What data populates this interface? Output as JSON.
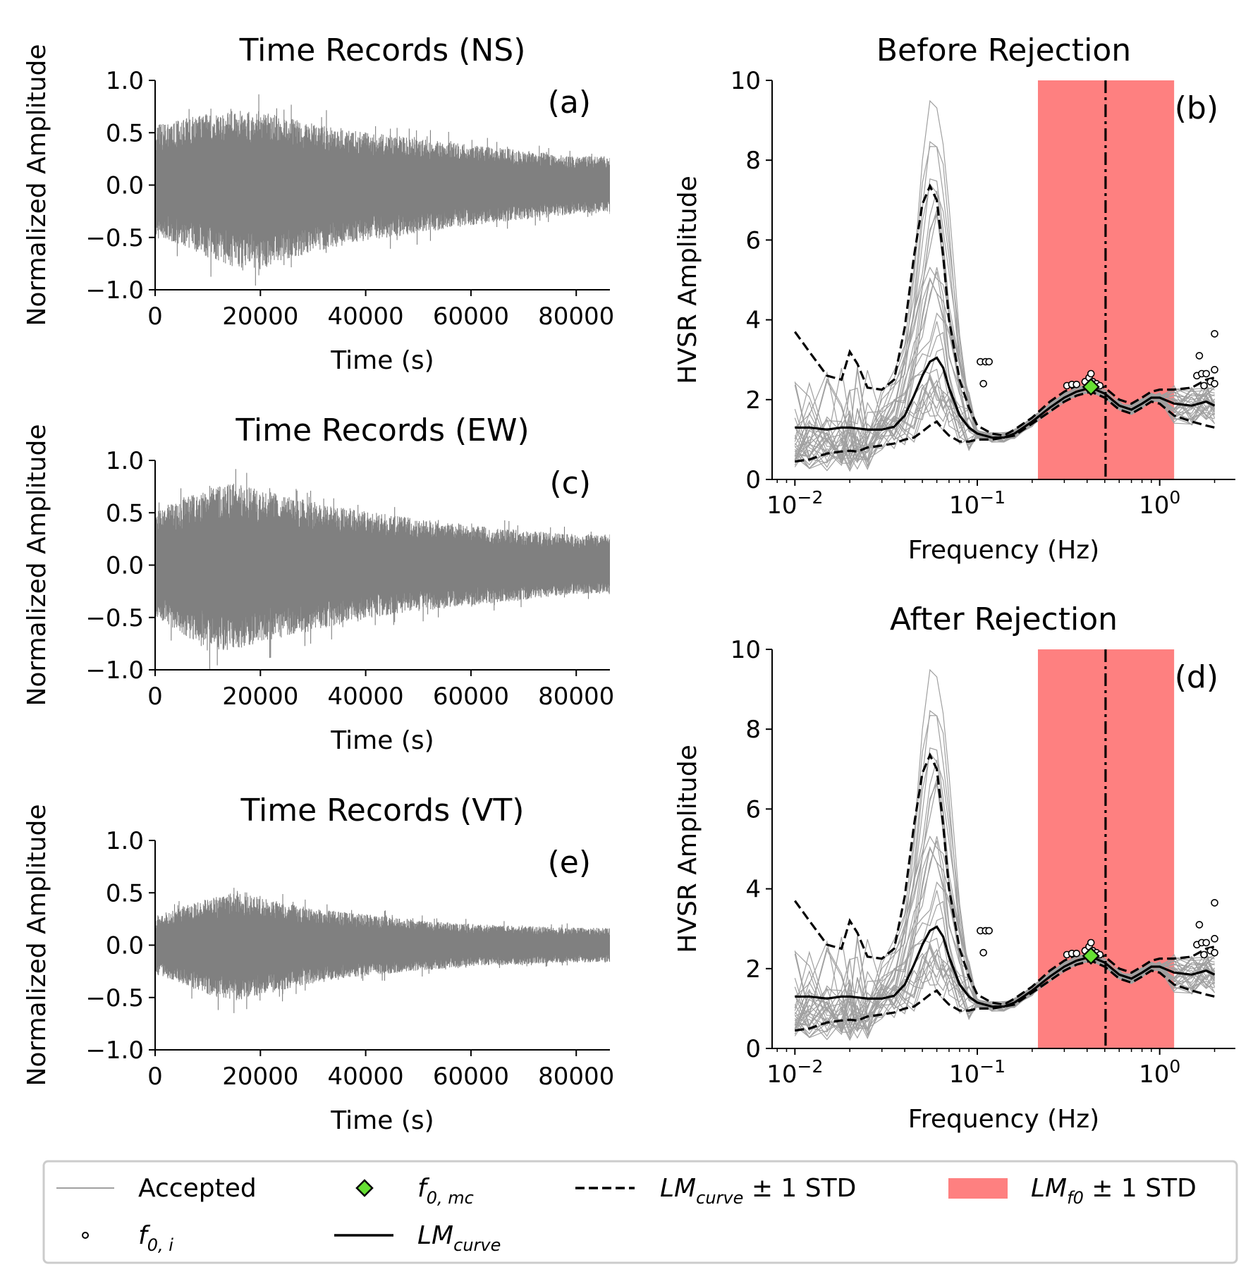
{
  "chart_data": [
    {
      "id": "a",
      "panel_tag": "(a)",
      "type": "line",
      "title": "Time Records (NS)",
      "xlabel": "Time (s)",
      "ylabel": "Normalized Amplitude",
      "xlim": [
        0,
        86400
      ],
      "ylim": [
        -1.0,
        1.0
      ],
      "xticks": [
        0,
        20000,
        40000,
        60000,
        80000
      ],
      "yticks": [
        1.0,
        0.5,
        0.0,
        -0.5,
        -1.0
      ],
      "ytick_labels": [
        "1.0",
        "0.5",
        "0.0",
        "−0.5",
        "−1.0"
      ],
      "color": "#808080",
      "envelope": {
        "t": [
          0,
          5000,
          10000,
          15000,
          20000,
          25000,
          30000,
          40000,
          50000,
          60000,
          70000,
          80000,
          86400
        ],
        "upper": [
          0.62,
          0.68,
          0.75,
          0.8,
          0.76,
          0.7,
          0.65,
          0.55,
          0.48,
          0.42,
          0.36,
          0.3,
          0.3
        ],
        "lower": [
          -0.55,
          -0.62,
          -0.75,
          -0.85,
          -0.88,
          -0.78,
          -0.7,
          -0.58,
          -0.5,
          -0.42,
          -0.36,
          -0.3,
          -0.3
        ]
      }
    },
    {
      "id": "c",
      "panel_tag": "(c)",
      "type": "line",
      "title": "Time Records (EW)",
      "xlabel": "Time (s)",
      "ylabel": "Normalized Amplitude",
      "xlim": [
        0,
        86400
      ],
      "ylim": [
        -1.0,
        1.0
      ],
      "xticks": [
        0,
        20000,
        40000,
        60000,
        80000
      ],
      "yticks": [
        1.0,
        0.5,
        0.0,
        -0.5,
        -1.0
      ],
      "ytick_labels": [
        "1.0",
        "0.5",
        "0.0",
        "−0.5",
        "−1.0"
      ],
      "color": "#808080",
      "envelope": {
        "t": [
          0,
          5000,
          10000,
          15000,
          20000,
          25000,
          30000,
          40000,
          50000,
          60000,
          70000,
          80000,
          86400
        ],
        "upper": [
          0.55,
          0.68,
          0.8,
          0.85,
          0.78,
          0.72,
          0.66,
          0.56,
          0.48,
          0.42,
          0.36,
          0.32,
          0.32
        ],
        "lower": [
          -0.55,
          -0.7,
          -0.9,
          -0.88,
          -0.8,
          -0.74,
          -0.68,
          -0.56,
          -0.48,
          -0.42,
          -0.36,
          -0.3,
          -0.3
        ]
      }
    },
    {
      "id": "e",
      "panel_tag": "(e)",
      "type": "line",
      "title": "Time Records (VT)",
      "xlabel": "Time (s)",
      "ylabel": "Normalized Amplitude",
      "xlim": [
        0,
        86400
      ],
      "ylim": [
        -1.0,
        1.0
      ],
      "xticks": [
        0,
        20000,
        40000,
        60000,
        80000
      ],
      "yticks": [
        1.0,
        0.5,
        0.0,
        -0.5,
        -1.0
      ],
      "ytick_labels": [
        "1.0",
        "0.5",
        "0.0",
        "−0.5",
        "−1.0"
      ],
      "color": "#808080",
      "envelope": {
        "t": [
          0,
          5000,
          10000,
          15000,
          20000,
          25000,
          30000,
          40000,
          50000,
          60000,
          70000,
          80000,
          86400
        ],
        "upper": [
          0.3,
          0.4,
          0.48,
          0.55,
          0.5,
          0.44,
          0.38,
          0.32,
          0.26,
          0.22,
          0.2,
          0.18,
          0.18
        ],
        "lower": [
          -0.3,
          -0.4,
          -0.52,
          -0.58,
          -0.52,
          -0.46,
          -0.4,
          -0.32,
          -0.27,
          -0.22,
          -0.2,
          -0.18,
          -0.18
        ]
      }
    },
    {
      "id": "b",
      "panel_tag": "(b)",
      "type": "line",
      "title": "Before Rejection",
      "xlabel": "Frequency (Hz)",
      "ylabel": "HVSR Amplitude",
      "xscale": "log",
      "xlim": [
        0.0075,
        2.6
      ],
      "ylim": [
        0,
        10
      ],
      "xticks": [
        0.01,
        0.1,
        1.0
      ],
      "yticks": [
        0,
        2,
        4,
        6,
        8,
        10
      ],
      "lm_f0_band": [
        0.215,
        1.2
      ],
      "lm_f0": 0.505,
      "f0_mc": {
        "f": 0.42,
        "amp": 2.32
      },
      "freq": [
        0.01,
        0.012,
        0.015,
        0.018,
        0.02,
        0.022,
        0.025,
        0.03,
        0.035,
        0.04,
        0.045,
        0.05,
        0.055,
        0.06,
        0.065,
        0.07,
        0.08,
        0.09,
        0.1,
        0.12,
        0.14,
        0.16,
        0.2,
        0.25,
        0.3,
        0.35,
        0.42,
        0.5,
        0.6,
        0.7,
        0.8,
        0.9,
        1.0,
        1.2,
        1.5,
        1.8,
        2.0
      ],
      "lm_curve": [
        1.3,
        1.3,
        1.25,
        1.3,
        1.3,
        1.28,
        1.25,
        1.25,
        1.32,
        1.6,
        2.1,
        2.6,
        2.95,
        3.05,
        2.8,
        2.3,
        1.6,
        1.3,
        1.15,
        1.05,
        1.05,
        1.15,
        1.45,
        1.8,
        2.05,
        2.2,
        2.3,
        2.15,
        1.85,
        1.75,
        1.9,
        2.05,
        2.05,
        1.9,
        1.85,
        1.95,
        1.85
      ],
      "lm_curve_plus_std": [
        3.7,
        3.2,
        2.6,
        2.5,
        3.2,
        2.9,
        2.3,
        2.25,
        2.5,
        3.8,
        5.6,
        6.9,
        7.35,
        7.0,
        5.6,
        4.0,
        2.5,
        1.8,
        1.35,
        1.15,
        1.1,
        1.25,
        1.55,
        1.95,
        2.2,
        2.35,
        2.45,
        2.3,
        2.0,
        1.9,
        2.05,
        2.2,
        2.25,
        2.25,
        2.3,
        2.5,
        2.55
      ],
      "lm_curve_minus_std": [
        0.45,
        0.5,
        0.65,
        0.7,
        0.72,
        0.7,
        0.8,
        0.85,
        0.9,
        1.0,
        1.05,
        1.2,
        1.35,
        1.45,
        1.25,
        1.1,
        0.95,
        0.95,
        1.0,
        1.0,
        1.05,
        1.1,
        1.4,
        1.7,
        1.95,
        2.1,
        2.2,
        2.05,
        1.75,
        1.65,
        1.8,
        1.95,
        1.9,
        1.6,
        1.45,
        1.35,
        1.3
      ],
      "f0_i": [
        [
          0.104,
          2.95
        ],
        [
          0.108,
          2.4
        ],
        [
          0.111,
          2.95
        ],
        [
          0.116,
          2.95
        ],
        [
          0.31,
          2.35
        ],
        [
          0.33,
          2.38
        ],
        [
          0.35,
          2.38
        ],
        [
          0.39,
          2.45
        ],
        [
          0.41,
          2.55
        ],
        [
          0.42,
          2.65
        ],
        [
          0.43,
          2.45
        ],
        [
          0.45,
          2.4
        ],
        [
          0.47,
          2.35
        ],
        [
          1.6,
          2.6
        ],
        [
          1.65,
          3.1
        ],
        [
          1.7,
          2.65
        ],
        [
          1.75,
          2.35
        ],
        [
          1.8,
          2.65
        ],
        [
          1.9,
          2.45
        ],
        [
          2.0,
          3.65
        ],
        [
          2.0,
          2.75
        ],
        [
          2.0,
          2.4
        ]
      ],
      "accepted_curves_shown": 30
    },
    {
      "id": "d",
      "panel_tag": "(d)",
      "type": "line",
      "title": "After Rejection",
      "xlabel": "Frequency (Hz)",
      "ylabel": "HVSR Amplitude",
      "xscale": "log",
      "xlim": [
        0.0075,
        2.6
      ],
      "ylim": [
        0,
        10
      ],
      "xticks": [
        0.01,
        0.1,
        1.0
      ],
      "yticks": [
        0,
        2,
        4,
        6,
        8,
        10
      ],
      "lm_f0_band": [
        0.215,
        1.2
      ],
      "lm_f0": 0.505,
      "f0_mc": {
        "f": 0.42,
        "amp": 2.32
      },
      "freq": [
        0.01,
        0.012,
        0.015,
        0.018,
        0.02,
        0.022,
        0.025,
        0.03,
        0.035,
        0.04,
        0.045,
        0.05,
        0.055,
        0.06,
        0.065,
        0.07,
        0.08,
        0.09,
        0.1,
        0.12,
        0.14,
        0.16,
        0.2,
        0.25,
        0.3,
        0.35,
        0.42,
        0.5,
        0.6,
        0.7,
        0.8,
        0.9,
        1.0,
        1.2,
        1.5,
        1.8,
        2.0
      ],
      "lm_curve": [
        1.3,
        1.3,
        1.25,
        1.3,
        1.3,
        1.28,
        1.25,
        1.25,
        1.32,
        1.6,
        2.1,
        2.6,
        2.95,
        3.05,
        2.8,
        2.3,
        1.6,
        1.3,
        1.15,
        1.05,
        1.05,
        1.15,
        1.45,
        1.8,
        2.05,
        2.2,
        2.3,
        2.15,
        1.85,
        1.75,
        1.9,
        2.05,
        2.05,
        1.9,
        1.85,
        1.95,
        1.85
      ],
      "lm_curve_plus_std": [
        3.7,
        3.2,
        2.6,
        2.5,
        3.2,
        2.9,
        2.3,
        2.25,
        2.5,
        3.8,
        5.6,
        6.9,
        7.35,
        7.0,
        5.6,
        4.0,
        2.5,
        1.8,
        1.35,
        1.15,
        1.1,
        1.25,
        1.55,
        1.95,
        2.2,
        2.35,
        2.45,
        2.3,
        2.0,
        1.9,
        2.05,
        2.2,
        2.25,
        2.25,
        2.3,
        2.5,
        2.55
      ],
      "lm_curve_minus_std": [
        0.45,
        0.5,
        0.65,
        0.7,
        0.72,
        0.7,
        0.8,
        0.85,
        0.9,
        1.0,
        1.05,
        1.2,
        1.35,
        1.45,
        1.25,
        1.1,
        0.95,
        0.95,
        1.0,
        1.0,
        1.05,
        1.1,
        1.4,
        1.7,
        1.95,
        2.1,
        2.2,
        2.05,
        1.75,
        1.65,
        1.8,
        1.95,
        1.9,
        1.6,
        1.45,
        1.35,
        1.3
      ],
      "f0_i": [
        [
          0.104,
          2.95
        ],
        [
          0.108,
          2.4
        ],
        [
          0.111,
          2.95
        ],
        [
          0.116,
          2.95
        ],
        [
          0.31,
          2.35
        ],
        [
          0.33,
          2.38
        ],
        [
          0.35,
          2.38
        ],
        [
          0.39,
          2.45
        ],
        [
          0.41,
          2.55
        ],
        [
          0.42,
          2.65
        ],
        [
          0.43,
          2.45
        ],
        [
          0.45,
          2.4
        ],
        [
          0.47,
          2.35
        ],
        [
          1.6,
          2.6
        ],
        [
          1.65,
          3.1
        ],
        [
          1.7,
          2.65
        ],
        [
          1.75,
          2.35
        ],
        [
          1.8,
          2.65
        ],
        [
          1.9,
          2.45
        ],
        [
          2.0,
          3.65
        ],
        [
          2.0,
          2.75
        ],
        [
          2.0,
          2.4
        ]
      ],
      "accepted_curves_shown": 30
    }
  ],
  "legend": {
    "placement": "bottom",
    "items": [
      {
        "key": "accepted",
        "label": "Accepted",
        "kind": "line",
        "color": "#a0a0a0"
      },
      {
        "key": "f0i",
        "label_main": "f",
        "label_sub": "0, i",
        "kind": "circle",
        "color": "#000000"
      },
      {
        "key": "f0mc",
        "label_main": "f",
        "label_sub": "0, mc",
        "kind": "diamond",
        "color": "#66e033"
      },
      {
        "key": "lmcurve",
        "label_main": "LM",
        "label_sub": "curve",
        "kind": "line",
        "color": "#000000"
      },
      {
        "key": "lmcurve_std",
        "label_main": "LM",
        "label_sub": "curve",
        "label_suffix": " ± 1 STD",
        "kind": "dashed",
        "color": "#000000"
      },
      {
        "key": "lmf0_std",
        "label_main": "LM",
        "label_sub": "f0",
        "label_suffix": " ± 1 STD",
        "kind": "patch",
        "color": "#fe8080"
      }
    ]
  }
}
